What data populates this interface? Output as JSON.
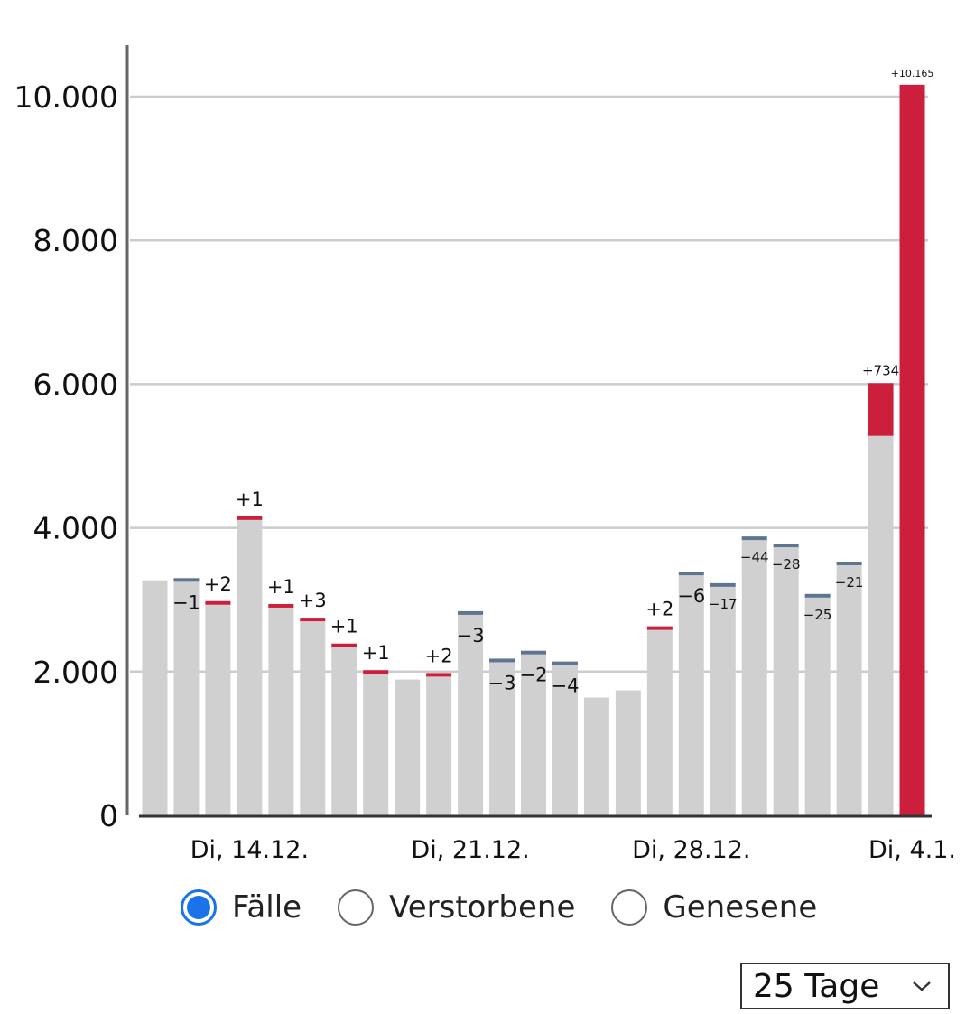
{
  "chart_data": {
    "type": "bar",
    "stacked": true,
    "ylim": [
      0,
      10700
    ],
    "yticks": [
      0,
      2000,
      4000,
      6000,
      8000,
      10000
    ],
    "ytick_labels": [
      "0",
      "2.000",
      "4.000",
      "6.000",
      "8.000",
      "10.000"
    ],
    "x_tick_labels": [
      {
        "index": 3,
        "label": "Di, 14.12."
      },
      {
        "index": 10,
        "label": "Di, 21.12."
      },
      {
        "index": 17,
        "label": "Di, 28.12."
      },
      {
        "index": 24,
        "label": "Di, 4.1."
      }
    ],
    "grid": true,
    "colors": {
      "base": "#d0d0d0",
      "increase": "#cc1f3c",
      "decrease": "#5d7590",
      "grid": "#cccccc",
      "axis": "#333333"
    },
    "bars": [
      {
        "base": 3270,
        "delta": 0,
        "label": ""
      },
      {
        "base": 3250,
        "delta": -1,
        "label": "−1"
      },
      {
        "base": 2930,
        "delta": 2,
        "label": "+2"
      },
      {
        "base": 4110,
        "delta": 1,
        "label": "+1"
      },
      {
        "base": 2890,
        "delta": 1,
        "label": "+1"
      },
      {
        "base": 2700,
        "delta": 3,
        "label": "+3"
      },
      {
        "base": 2340,
        "delta": 1,
        "label": "+1"
      },
      {
        "base": 1970,
        "delta": 1,
        "label": "+1"
      },
      {
        "base": 1890,
        "delta": 0,
        "label": ""
      },
      {
        "base": 1930,
        "delta": 2,
        "label": "+2"
      },
      {
        "base": 2790,
        "delta": -3,
        "label": "−3"
      },
      {
        "base": 2130,
        "delta": -3,
        "label": "−3"
      },
      {
        "base": 2240,
        "delta": -2,
        "label": "−2"
      },
      {
        "base": 2090,
        "delta": -4,
        "label": "−4"
      },
      {
        "base": 1640,
        "delta": 0,
        "label": ""
      },
      {
        "base": 1740,
        "delta": 0,
        "label": ""
      },
      {
        "base": 2580,
        "delta": 2,
        "label": "+2"
      },
      {
        "base": 3340,
        "delta": -6,
        "label": "−6"
      },
      {
        "base": 3180,
        "delta": -17,
        "label": "−17"
      },
      {
        "base": 3830,
        "delta": -44,
        "label": "−44"
      },
      {
        "base": 3730,
        "delta": -28,
        "label": "−28"
      },
      {
        "base": 3030,
        "delta": -25,
        "label": "−25"
      },
      {
        "base": 3480,
        "delta": -21,
        "label": "−21"
      },
      {
        "base": 5280,
        "delta": 734,
        "label": "+734"
      },
      {
        "base": 0,
        "delta": 10165,
        "label": "+10.165"
      }
    ]
  },
  "controls": {
    "radios": [
      {
        "label": "Fälle",
        "checked": true
      },
      {
        "label": "Verstorbene",
        "checked": false
      },
      {
        "label": "Genesene",
        "checked": false
      }
    ],
    "range_select": {
      "value": "25 Tage"
    }
  }
}
